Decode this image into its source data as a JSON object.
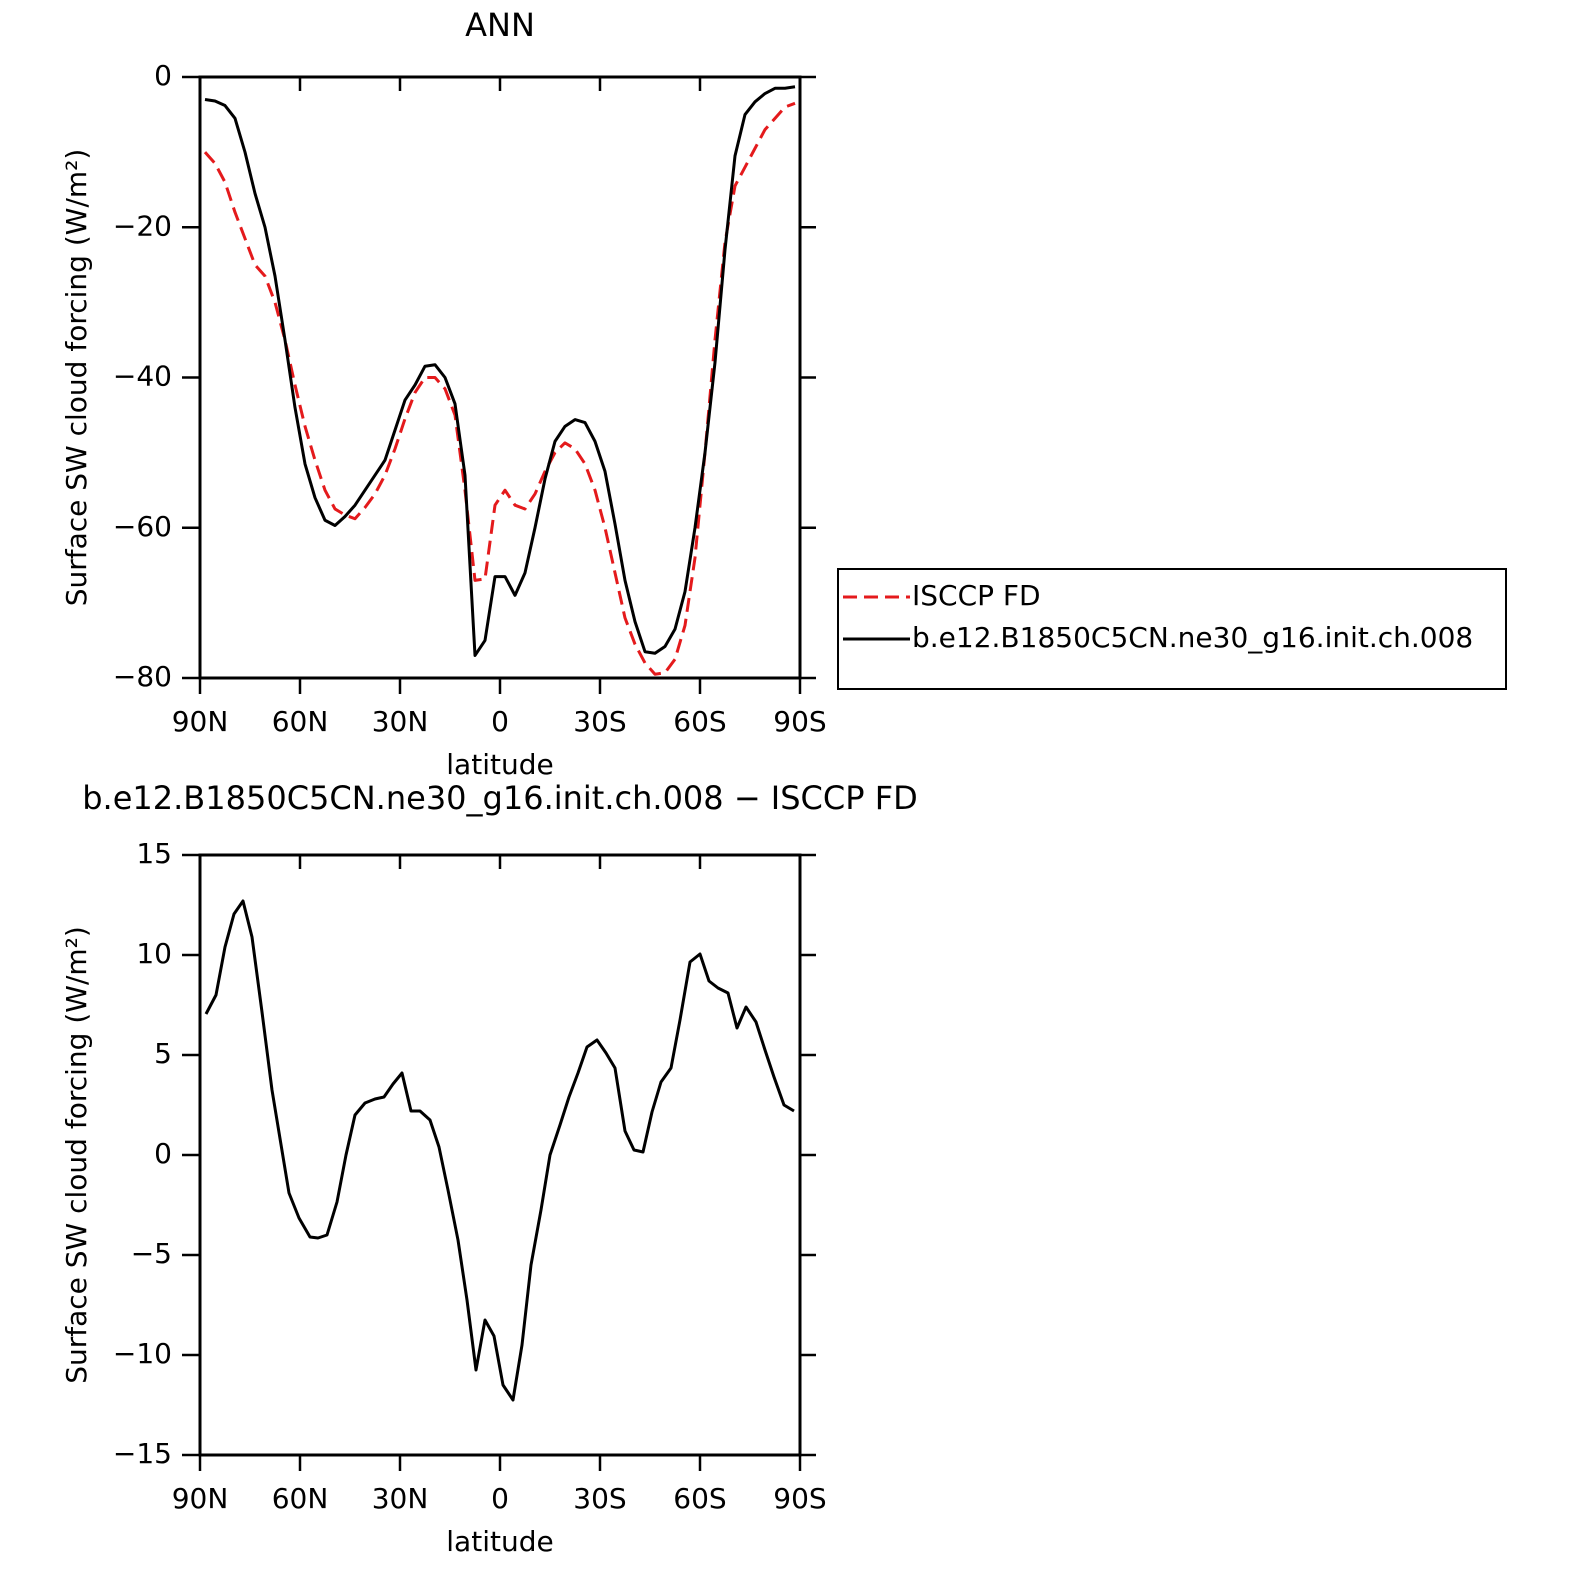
{
  "chart_data": [
    {
      "type": "line",
      "title": "ANN",
      "xlabel": "latitude",
      "ylabel": "Surface SW cloud forcing (W/m²)",
      "xlim": [
        90,
        -90
      ],
      "xticks": [
        {
          "value": 90,
          "label": "90N"
        },
        {
          "value": 60,
          "label": "60N"
        },
        {
          "value": 30,
          "label": "30N"
        },
        0,
        {
          "value": -30,
          "label": "30S"
        },
        {
          "value": -60,
          "label": "60S"
        },
        {
          "value": -90,
          "label": "90S"
        }
      ],
      "ylim": [
        -80,
        0
      ],
      "yticks": [
        0,
        {
          "value": -20,
          "label": "−20"
        },
        {
          "value": -40,
          "label": "−40"
        },
        {
          "value": -60,
          "label": "−60"
        },
        {
          "value": -80,
          "label": "−80"
        }
      ],
      "legend": "right",
      "x": [
        88.5,
        85.5,
        82.5,
        79.5,
        76.5,
        73.5,
        70.5,
        67.5,
        64.5,
        61.5,
        58.5,
        55.5,
        52.5,
        49.5,
        46.5,
        43.5,
        40.5,
        37.5,
        34.5,
        31.5,
        28.5,
        25.5,
        22.5,
        19.5,
        16.5,
        13.5,
        10.5,
        7.5,
        4.5,
        1.5,
        -1.5,
        -4.5,
        -7.5,
        -10.5,
        -13.5,
        -16.5,
        -19.5,
        -22.5,
        -25.5,
        -28.5,
        -31.5,
        -34.5,
        -37.5,
        -40.5,
        -43.5,
        -46.5,
        -49.5,
        -52.5,
        -55.5,
        -58.5,
        -61.5,
        -64.5,
        -67.5,
        -70.5,
        -73.5,
        -76.5,
        -79.5,
        -82.5,
        -85.5,
        -88.5
      ],
      "series": [
        {
          "name": "ISCCP FD",
          "color": "#e41a1c",
          "line_style": "dashed",
          "values": [
            -10,
            -11.5,
            -14,
            -18,
            -21.5,
            -25,
            -26.5,
            -30,
            -35,
            -41,
            -46.5,
            -51,
            -55,
            -57.5,
            -58.3,
            -58.8,
            -57.3,
            -55.5,
            -53,
            -49.5,
            -45.5,
            -42,
            -40,
            -40,
            -41.5,
            -45,
            -55,
            -67,
            -66.8,
            -57,
            -55,
            -57,
            -57.5,
            -55.5,
            -52.5,
            -50,
            -48.7,
            -49.5,
            -51.5,
            -55,
            -60,
            -66,
            -72,
            -75.5,
            -78,
            -79.5,
            -79.3,
            -77.5,
            -73,
            -64,
            -50,
            -35,
            -22,
            -14.5,
            -12,
            -9.5,
            -7,
            -5.5,
            -4,
            -3.5
          ]
        },
        {
          "name": "b.e12.B1850C5CN.ne30_g16.init.ch.008",
          "color": "#000000",
          "line_style": "solid",
          "values": [
            -3,
            -3.2,
            -3.8,
            -5.5,
            -10,
            -15.5,
            -20,
            -26.5,
            -35,
            -44,
            -51.5,
            -56,
            -59,
            -59.7,
            -58.5,
            -57,
            -55,
            -53,
            -51,
            -47,
            -43,
            -41,
            -38.5,
            -38.3,
            -40,
            -43.5,
            -53,
            -77,
            -75,
            -66.5,
            -66.5,
            -69,
            -66,
            -60,
            -53.5,
            -48.5,
            -46.5,
            -45.6,
            -46,
            -48.5,
            -52.5,
            -59.5,
            -67,
            -72.5,
            -76.5,
            -76.7,
            -75.8,
            -73.5,
            -68.5,
            -60,
            -50,
            -38,
            -23,
            -10.5,
            -5,
            -3.3,
            -2.2,
            -1.5,
            -1.5,
            -1.3
          ]
        }
      ]
    },
    {
      "type": "line",
      "title": "b.e12.B1850C5CN.ne30_g16.init.ch.008 − ISCCP FD",
      "xlabel": "latitude",
      "ylabel": "Surface SW cloud forcing (W/m²)",
      "xlim": [
        90,
        -90
      ],
      "xticks": [
        {
          "value": 90,
          "label": "90N"
        },
        {
          "value": 60,
          "label": "60N"
        },
        {
          "value": 30,
          "label": "30N"
        },
        0,
        {
          "value": -30,
          "label": "30S"
        },
        {
          "value": -60,
          "label": "60S"
        },
        {
          "value": -90,
          "label": "90S"
        }
      ],
      "ylim": [
        -15,
        15
      ],
      "yticks": [
        15,
        10,
        5,
        0,
        {
          "value": -5,
          "label": "−5"
        },
        {
          "value": -10,
          "label": "−10"
        },
        {
          "value": -15,
          "label": "−15"
        }
      ],
      "color": "#000000",
      "x": [
        88.2,
        85.2,
        82.5,
        79.8,
        77.1,
        74.4,
        71.4,
        68.4,
        63.3,
        60.3,
        57.0,
        54.6,
        51.9,
        48.9,
        46.2,
        43.5,
        40.5,
        37.5,
        34.8,
        32.1,
        29.4,
        26.7,
        24.0,
        21.0,
        18.3,
        15.6,
        12.6,
        9.9,
        7.2,
        4.5,
        1.8,
        -0.9,
        -3.9,
        -6.6,
        -9.3,
        -12.3,
        -15.0,
        -18.0,
        -20.7,
        -23.4,
        -26.1,
        -29.1,
        -31.8,
        -34.5,
        -37.5,
        -40.2,
        -42.9,
        -45.6,
        -48.3,
        -51.3,
        -54.0,
        -57.0,
        -60.0,
        -62.7,
        -65.4,
        -68.4,
        -71.1,
        -73.8,
        -76.8,
        -79.5,
        -82.2,
        -85.2,
        -88.2
      ],
      "values": [
        7.05,
        8,
        10.4,
        12.05,
        12.7,
        10.9,
        7.15,
        3.25,
        -1.9,
        -3.15,
        -4.1,
        -4.15,
        -4,
        -2.35,
        0,
        2,
        2.6,
        2.8,
        2.9,
        3.55,
        4.1,
        2.2,
        2.2,
        1.75,
        0.4,
        -1.75,
        -4.25,
        -7.25,
        -10.75,
        -8.25,
        -9.05,
        -11.5,
        -12.25,
        -9.5,
        -5.5,
        -2.75,
        0,
        1.5,
        2.9,
        4.1,
        5.4,
        5.75,
        5.1,
        4.35,
        1.2,
        0.25,
        0.15,
        2.15,
        3.65,
        4.35,
        6.75,
        9.65,
        10.05,
        8.7,
        8.35,
        8.1,
        6.35,
        7.4,
        6.65,
        5.25,
        3.9,
        2.5,
        2.2
      ]
    }
  ]
}
